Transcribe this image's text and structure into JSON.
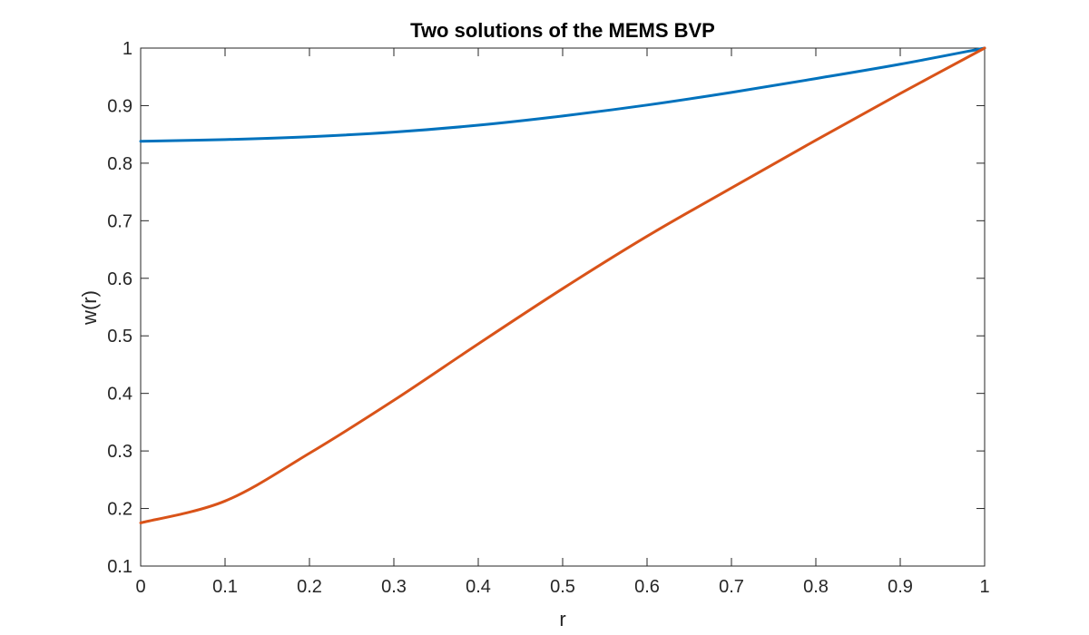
{
  "chart_data": {
    "type": "line",
    "title": "Two solutions of the MEMS BVP",
    "xlabel": "r",
    "ylabel": "w(r)",
    "xlim": [
      0,
      1
    ],
    "ylim": [
      0.1,
      1
    ],
    "grid": false,
    "legend": "none",
    "xticks": [
      0,
      0.1,
      0.2,
      0.3,
      0.4,
      0.5,
      0.6,
      0.7,
      0.8,
      0.9,
      1
    ],
    "xtick_labels": [
      "0",
      "0.1",
      "0.2",
      "0.3",
      "0.4",
      "0.5",
      "0.6",
      "0.7",
      "0.8",
      "0.9",
      "1"
    ],
    "yticks": [
      0.1,
      0.2,
      0.3,
      0.4,
      0.5,
      0.6,
      0.7,
      0.8,
      0.9,
      1
    ],
    "ytick_labels": [
      "0.1",
      "0.2",
      "0.3",
      "0.4",
      "0.5",
      "0.6",
      "0.7",
      "0.8",
      "0.9",
      "1"
    ],
    "x": [
      0,
      0.1,
      0.2,
      0.3,
      0.4,
      0.5,
      0.6,
      0.7,
      0.8,
      0.9,
      1
    ],
    "series": [
      {
        "color": "#0072BD",
        "values": [
          0.838,
          0.841,
          0.846,
          0.854,
          0.866,
          0.882,
          0.901,
          0.923,
          0.947,
          0.972,
          1.0
        ]
      },
      {
        "color": "#D95319",
        "values": [
          0.175,
          0.213,
          0.296,
          0.388,
          0.486,
          0.582,
          0.673,
          0.757,
          0.84,
          0.921,
          1.0
        ]
      }
    ]
  }
}
